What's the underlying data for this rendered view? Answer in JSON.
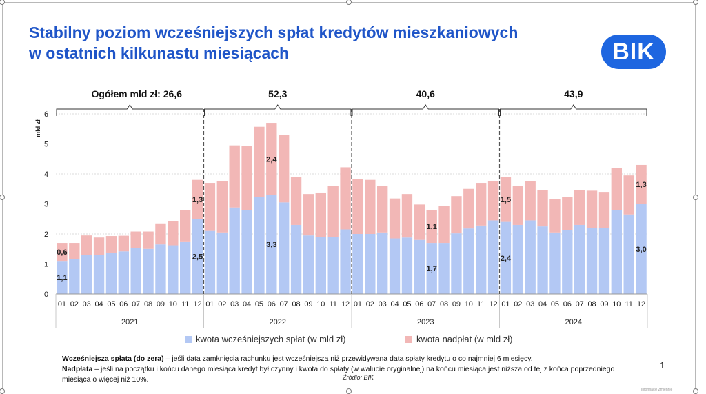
{
  "title": {
    "line1": "Stabilny poziom wcześniejszych spłat kredytów mieszkaniowych",
    "line2": "w ostatnich kilkunastu miesiącach"
  },
  "logo": {
    "text": "BIK",
    "color": "#1e66e0"
  },
  "colors": {
    "blue": "#b3c8f4",
    "pink": "#f2b7b6",
    "title": "#1f55c8"
  },
  "chart_data": {
    "type": "bar",
    "stacked": true,
    "ylabel": "mld zł",
    "ylim": [
      0,
      6
    ],
    "yticks": [
      "0",
      "1",
      "2",
      "3",
      "4",
      "5",
      "6"
    ],
    "categories": [
      "01",
      "02",
      "03",
      "04",
      "05",
      "06",
      "07",
      "08",
      "09",
      "10",
      "11",
      "12",
      "01",
      "02",
      "03",
      "04",
      "05",
      "06",
      "07",
      "08",
      "09",
      "10",
      "11",
      "12",
      "01",
      "02",
      "03",
      "04",
      "05",
      "06",
      "07",
      "08",
      "09",
      "10",
      "11",
      "12",
      "01",
      "02",
      "03",
      "04",
      "05",
      "06",
      "07",
      "08",
      "09",
      "10",
      "11",
      "12"
    ],
    "years": [
      "2021",
      "2022",
      "2023",
      "2024"
    ],
    "year_totals": [
      "Ogółem mld zł: 26,6",
      "52,3",
      "40,6",
      "43,9"
    ],
    "series": [
      {
        "name": "kwota wcześniejszych spłat (w mld zł)",
        "color": "#b3c8f4",
        "values": [
          1.1,
          1.15,
          1.3,
          1.3,
          1.38,
          1.42,
          1.52,
          1.5,
          1.65,
          1.62,
          1.75,
          2.5,
          2.1,
          2.05,
          2.88,
          2.8,
          3.22,
          3.3,
          3.05,
          2.3,
          1.95,
          1.9,
          1.9,
          2.15,
          2.0,
          2.0,
          2.05,
          1.85,
          1.88,
          1.8,
          1.7,
          1.7,
          2.02,
          2.18,
          2.28,
          2.45,
          2.4,
          2.3,
          2.45,
          2.25,
          2.05,
          2.12,
          2.3,
          2.2,
          2.2,
          2.8,
          2.65,
          3.0
        ]
      },
      {
        "name": "kwota nadpłat (w mld zł)",
        "color": "#f2b7b6",
        "values": [
          0.6,
          0.55,
          0.65,
          0.58,
          0.55,
          0.52,
          0.56,
          0.58,
          0.7,
          0.8,
          1.05,
          1.3,
          1.6,
          1.72,
          2.07,
          2.12,
          2.35,
          2.4,
          2.25,
          1.6,
          1.38,
          1.48,
          1.7,
          2.07,
          1.83,
          1.8,
          1.55,
          1.33,
          1.45,
          1.18,
          1.1,
          1.22,
          1.24,
          1.32,
          1.42,
          1.32,
          1.5,
          1.3,
          1.32,
          1.22,
          1.12,
          1.1,
          1.15,
          1.24,
          1.2,
          1.4,
          1.3,
          1.3
        ]
      }
    ],
    "data_labels": [
      {
        "index": 0,
        "series": 0,
        "text": "1,1"
      },
      {
        "index": 0,
        "series": 1,
        "text": "0,6"
      },
      {
        "index": 11,
        "series": 0,
        "text": "2,5"
      },
      {
        "index": 11,
        "series": 1,
        "text": "1,3"
      },
      {
        "index": 17,
        "series": 0,
        "text": "3,3"
      },
      {
        "index": 17,
        "series": 1,
        "text": "2,4"
      },
      {
        "index": 30,
        "series": 0,
        "text": "1,7"
      },
      {
        "index": 30,
        "series": 1,
        "text": "1,1"
      },
      {
        "index": 36,
        "series": 0,
        "text": "2,4"
      },
      {
        "index": 36,
        "series": 1,
        "text": "1,5"
      },
      {
        "index": 47,
        "series": 0,
        "text": "3,0"
      },
      {
        "index": 47,
        "series": 1,
        "text": "1,3"
      }
    ],
    "legend": [
      "kwota wcześniejszych spłat (w mld zł)",
      "kwota nadpłat (w mld zł)"
    ]
  },
  "notes": {
    "def1_term": "Wcześniejsza spłata (do zera)",
    "def1_text": " – jeśli data zamknięcia rachunku jest wcześniejsza niż przewidywana data spłaty kredytu o co najmniej 6 miesięcy.",
    "def2_term": "Nadpłata",
    "def2_text": " – jeśli na początku i końcu danego miesiąca kredyt był czynny i kwota do spłaty (w walucie oryginalnej) na końcu miesiąca jest niższa od tej z końca poprzedniego miesiąca o więcej niż 10%."
  },
  "source": "Źródło: BIK",
  "page_number": "1",
  "footer_small": "Informacje Zmiennie"
}
